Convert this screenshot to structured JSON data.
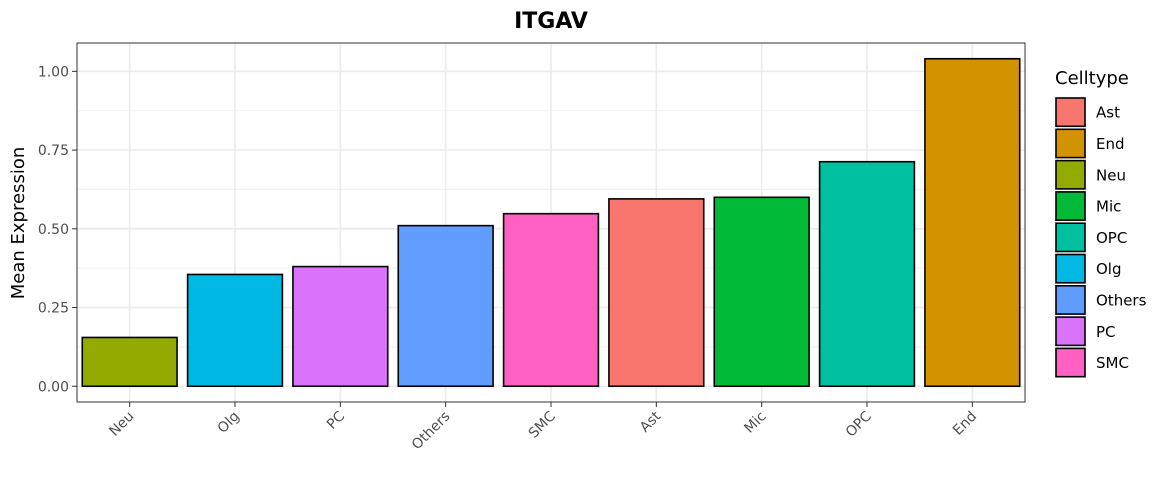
{
  "chart_data": {
    "type": "bar",
    "title": "ITGAV",
    "xlabel": "",
    "ylabel": "Mean Expression",
    "categories": [
      "Neu",
      "Olg",
      "PC",
      "Others",
      "SMC",
      "Ast",
      "Mic",
      "OPC",
      "End"
    ],
    "values": [
      0.155,
      0.355,
      0.38,
      0.51,
      0.548,
      0.595,
      0.6,
      0.713,
      1.04
    ],
    "colors": [
      "#93AA00",
      "#00B9E3",
      "#DB72FB",
      "#619CFF",
      "#FF61C3",
      "#F8766D",
      "#00BA38",
      "#00C19F",
      "#D39200"
    ],
    "ylim": [
      -0.05,
      1.09
    ],
    "yticks": [
      0.0,
      0.25,
      0.5,
      0.75,
      1.0
    ],
    "ytick_labels": [
      "0.00",
      "0.25",
      "0.50",
      "0.75",
      "1.00"
    ],
    "grid": true,
    "legend": {
      "title": "Celltype",
      "position": "right",
      "entries": [
        {
          "label": "Ast",
          "color": "#F8766D"
        },
        {
          "label": "End",
          "color": "#D39200"
        },
        {
          "label": "Neu",
          "color": "#93AA00"
        },
        {
          "label": "Mic",
          "color": "#00BA38"
        },
        {
          "label": "OPC",
          "color": "#00C19F"
        },
        {
          "label": "Olg",
          "color": "#00B9E3"
        },
        {
          "label": "Others",
          "color": "#619CFF"
        },
        {
          "label": "PC",
          "color": "#DB72FB"
        },
        {
          "label": "SMC",
          "color": "#FF61C3"
        }
      ]
    }
  }
}
